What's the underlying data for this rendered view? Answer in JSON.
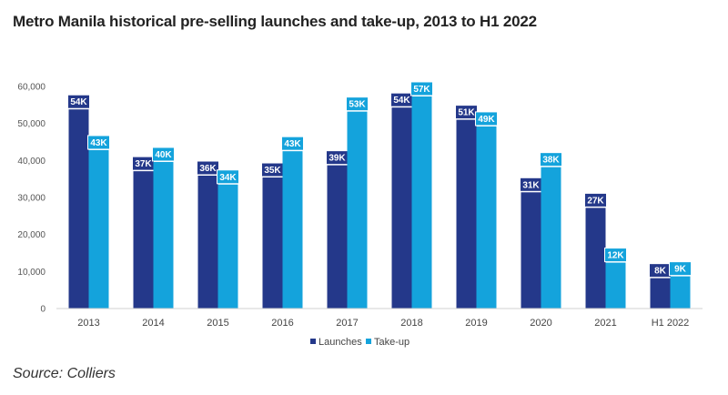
{
  "chart_data": {
    "type": "bar",
    "title": "Metro Manila historical pre-selling launches and take-up, 2013 to H1 2022",
    "categories": [
      "2013",
      "2014",
      "2015",
      "2016",
      "2017",
      "2018",
      "2019",
      "2020",
      "2021",
      "H1 2022"
    ],
    "series": [
      {
        "name": "Launches",
        "color": "#24388a",
        "values": [
          53800,
          37100,
          35900,
          35400,
          38700,
          54300,
          51000,
          31400,
          27200,
          8200
        ],
        "labels": [
          "54K",
          "37K",
          "36K",
          "35K",
          "39K",
          "54K",
          "51K",
          "31K",
          "27K",
          "8K"
        ]
      },
      {
        "name": "Take-up",
        "color": "#14a3dc",
        "values": [
          42800,
          39600,
          33500,
          42500,
          53200,
          57300,
          49200,
          38200,
          12400,
          8700
        ],
        "labels": [
          "43K",
          "40K",
          "34K",
          "43K",
          "53K",
          "57K",
          "49K",
          "38K",
          "12K",
          "9K"
        ]
      }
    ],
    "ylim": [
      0,
      60000
    ],
    "yticks": [
      0,
      10000,
      20000,
      30000,
      40000,
      50000,
      60000
    ],
    "ytick_labels": [
      "0",
      "10,000",
      "20,000",
      "30,000",
      "40,000",
      "50,000",
      "60,000"
    ],
    "legend_position": "bottom-center",
    "grid": false
  },
  "source": "Source: Colliers"
}
